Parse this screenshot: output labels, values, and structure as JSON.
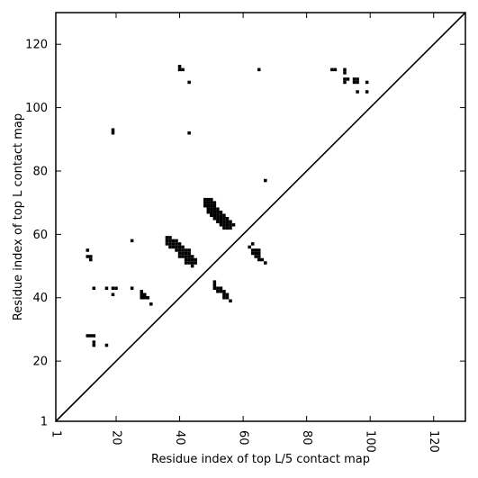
{
  "chart_data": {
    "type": "scatter",
    "xlabel": "Residue index of top L/5 contact map",
    "ylabel": "Residue index of top L contact map",
    "xlim": [
      1,
      130
    ],
    "ylim": [
      1,
      130
    ],
    "xticks": [
      1,
      20,
      40,
      60,
      80,
      100,
      120
    ],
    "yticks": [
      1,
      20,
      40,
      60,
      80,
      100,
      120
    ],
    "xtick_labels": [
      "1",
      "20",
      "40",
      "60",
      "80",
      "100",
      "120"
    ],
    "ytick_labels": [
      "1",
      "20",
      "40",
      "60",
      "80",
      "100",
      "120"
    ],
    "diagonal": true,
    "marker": "square",
    "color": "#000000",
    "upper_points": [
      [
        40,
        113
      ],
      [
        41,
        112
      ],
      [
        40,
        112
      ],
      [
        43,
        108
      ],
      [
        65,
        112
      ],
      [
        88,
        112
      ],
      [
        89,
        112
      ],
      [
        92,
        112
      ],
      [
        92,
        111
      ],
      [
        92,
        109
      ],
      [
        93,
        109
      ],
      [
        92,
        108
      ],
      [
        95,
        109
      ],
      [
        96,
        109
      ],
      [
        95,
        108
      ],
      [
        96,
        108
      ],
      [
        99,
        108
      ],
      [
        96,
        105
      ],
      [
        99,
        105
      ],
      [
        19,
        93
      ],
      [
        19,
        92
      ],
      [
        43,
        92
      ],
      [
        67,
        77
      ]
    ],
    "lower_points": [
      [
        11,
        55
      ],
      [
        11,
        53
      ],
      [
        12,
        53
      ],
      [
        12,
        52
      ],
      [
        25,
        58
      ],
      [
        13,
        43
      ],
      [
        17,
        43
      ],
      [
        19,
        43
      ],
      [
        20,
        43
      ],
      [
        25,
        43
      ],
      [
        19,
        41
      ],
      [
        28,
        42
      ],
      [
        28,
        41
      ],
      [
        29,
        41
      ],
      [
        28,
        40
      ],
      [
        29,
        40
      ],
      [
        30,
        40
      ],
      [
        31,
        38
      ],
      [
        11,
        28
      ],
      [
        12,
        28
      ],
      [
        13,
        28
      ],
      [
        13,
        26
      ],
      [
        13,
        25
      ],
      [
        17,
        25
      ],
      [
        36,
        59
      ],
      [
        37,
        59
      ],
      [
        36,
        58
      ],
      [
        37,
        58
      ],
      [
        38,
        58
      ],
      [
        39,
        58
      ],
      [
        36,
        57
      ],
      [
        37,
        57
      ],
      [
        38,
        57
      ],
      [
        39,
        57
      ],
      [
        40,
        57
      ],
      [
        37,
        56
      ],
      [
        38,
        56
      ],
      [
        39,
        56
      ],
      [
        40,
        56
      ],
      [
        41,
        56
      ],
      [
        39,
        55
      ],
      [
        40,
        55
      ],
      [
        41,
        55
      ],
      [
        42,
        55
      ],
      [
        43,
        55
      ],
      [
        40,
        54
      ],
      [
        41,
        54
      ],
      [
        42,
        54
      ],
      [
        43,
        54
      ],
      [
        40,
        53
      ],
      [
        41,
        53
      ],
      [
        42,
        53
      ],
      [
        43,
        53
      ],
      [
        44,
        53
      ],
      [
        42,
        52
      ],
      [
        43,
        52
      ],
      [
        44,
        52
      ],
      [
        45,
        52
      ],
      [
        42,
        51
      ],
      [
        43,
        51
      ],
      [
        44,
        51
      ],
      [
        45,
        51
      ],
      [
        44,
        50
      ],
      [
        48,
        71
      ],
      [
        49,
        71
      ],
      [
        50,
        71
      ],
      [
        48,
        70
      ],
      [
        49,
        70
      ],
      [
        50,
        70
      ],
      [
        51,
        70
      ],
      [
        48,
        69
      ],
      [
        49,
        69
      ],
      [
        50,
        69
      ],
      [
        51,
        69
      ],
      [
        49,
        68
      ],
      [
        50,
        68
      ],
      [
        51,
        68
      ],
      [
        52,
        68
      ],
      [
        49,
        67
      ],
      [
        50,
        67
      ],
      [
        51,
        67
      ],
      [
        52,
        67
      ],
      [
        53,
        67
      ],
      [
        50,
        66
      ],
      [
        51,
        66
      ],
      [
        52,
        66
      ],
      [
        53,
        66
      ],
      [
        54,
        66
      ],
      [
        51,
        65
      ],
      [
        52,
        65
      ],
      [
        53,
        65
      ],
      [
        54,
        65
      ],
      [
        55,
        65
      ],
      [
        52,
        64
      ],
      [
        53,
        64
      ],
      [
        54,
        64
      ],
      [
        55,
        64
      ],
      [
        56,
        64
      ],
      [
        53,
        63
      ],
      [
        54,
        63
      ],
      [
        55,
        63
      ],
      [
        56,
        63
      ],
      [
        57,
        63
      ],
      [
        54,
        62
      ],
      [
        55,
        62
      ],
      [
        56,
        62
      ],
      [
        63,
        57
      ],
      [
        62,
        56
      ],
      [
        63,
        55
      ],
      [
        64,
        55
      ],
      [
        65,
        55
      ],
      [
        63,
        54
      ],
      [
        64,
        54
      ],
      [
        65,
        54
      ],
      [
        64,
        53
      ],
      [
        65,
        53
      ],
      [
        65,
        52
      ],
      [
        66,
        52
      ],
      [
        67,
        51
      ],
      [
        51,
        45
      ],
      [
        51,
        44
      ],
      [
        51,
        43
      ],
      [
        52,
        43
      ],
      [
        53,
        43
      ],
      [
        52,
        42
      ],
      [
        53,
        42
      ],
      [
        54,
        42
      ],
      [
        54,
        41
      ],
      [
        55,
        41
      ],
      [
        54,
        40
      ],
      [
        55,
        40
      ],
      [
        56,
        39
      ]
    ]
  }
}
